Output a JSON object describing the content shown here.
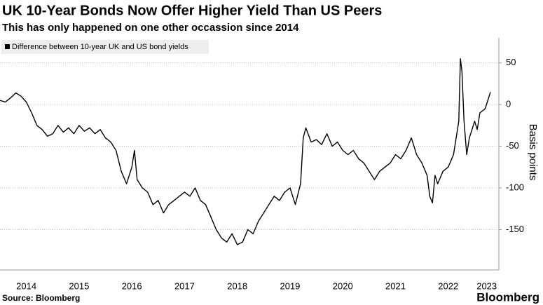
{
  "chart_data": {
    "type": "line",
    "title": "UK 10-Year Bonds Now Offer Higher Yield Than US Peers",
    "subtitle": "This has only happened on one other occassion since 2014",
    "y_label": "Basis points",
    "source": "Source: Bloomberg",
    "brand": "Bloomberg",
    "x": [
      2014.0,
      2014.1,
      2014.2,
      2014.3,
      2014.4,
      2014.5,
      2014.6,
      2014.7,
      2014.8,
      2014.9,
      2015.0,
      2015.1,
      2015.2,
      2015.3,
      2015.4,
      2015.5,
      2015.6,
      2015.7,
      2015.8,
      2015.9,
      2016.0,
      2016.1,
      2016.2,
      2016.3,
      2016.4,
      2016.5,
      2016.55,
      2016.6,
      2016.7,
      2016.8,
      2016.9,
      2017.0,
      2017.1,
      2017.2,
      2017.3,
      2017.4,
      2017.5,
      2017.6,
      2017.7,
      2017.8,
      2017.9,
      2018.0,
      2018.1,
      2018.2,
      2018.3,
      2018.4,
      2018.5,
      2018.6,
      2018.7,
      2018.8,
      2018.9,
      2019.0,
      2019.1,
      2019.2,
      2019.3,
      2019.4,
      2019.5,
      2019.6,
      2019.7,
      2019.75,
      2019.8,
      2019.9,
      2020.0,
      2020.1,
      2020.2,
      2020.3,
      2020.4,
      2020.5,
      2020.6,
      2020.7,
      2020.8,
      2020.9,
      2021.0,
      2021.1,
      2021.2,
      2021.3,
      2021.4,
      2021.5,
      2021.6,
      2021.7,
      2021.8,
      2021.9,
      2022.0,
      2022.1,
      2022.15,
      2022.2,
      2022.25,
      2022.3,
      2022.4,
      2022.5,
      2022.6,
      2022.7,
      2022.73,
      2022.76,
      2022.8,
      2022.85,
      2022.9,
      2023.0,
      2023.05,
      2023.1,
      2023.2,
      2023.3
    ],
    "series": [
      {
        "name": "Difference between 10-year UK and US bond yields",
        "color": "#000000",
        "values": [
          5,
          3,
          8,
          14,
          10,
          3,
          -10,
          -25,
          -30,
          -38,
          -35,
          -25,
          -33,
          -28,
          -35,
          -25,
          -32,
          -28,
          -35,
          -30,
          -40,
          -45,
          -55,
          -80,
          -95,
          -75,
          -55,
          -90,
          -100,
          -105,
          -120,
          -115,
          -130,
          -120,
          -115,
          -110,
          -105,
          -110,
          -100,
          -115,
          -120,
          -135,
          -150,
          -160,
          -165,
          -155,
          -168,
          -165,
          -150,
          -155,
          -140,
          -130,
          -120,
          -110,
          -115,
          -105,
          -100,
          -120,
          -95,
          -40,
          -28,
          -45,
          -42,
          -48,
          -35,
          -50,
          -45,
          -55,
          -60,
          -55,
          -65,
          -70,
          -80,
          -90,
          -80,
          -75,
          -70,
          -60,
          -65,
          -55,
          -40,
          -60,
          -70,
          -85,
          -110,
          -118,
          -85,
          -95,
          -80,
          -75,
          -60,
          -20,
          55,
          40,
          -20,
          -60,
          -40,
          -20,
          -30,
          -10,
          -5,
          15
        ]
      }
    ],
    "xlim": [
      2014,
      2023.46
    ],
    "xticks": [
      {
        "value": 2014.5,
        "label": "2014"
      },
      {
        "value": 2015.5,
        "label": "2015"
      },
      {
        "value": 2016.5,
        "label": "2016"
      },
      {
        "value": 2017.5,
        "label": "2017"
      },
      {
        "value": 2018.5,
        "label": "2018"
      },
      {
        "value": 2019.5,
        "label": "2019"
      },
      {
        "value": 2020.5,
        "label": "2020"
      },
      {
        "value": 2021.5,
        "label": "2021"
      },
      {
        "value": 2022.5,
        "label": "2022"
      },
      {
        "value": 2023.23,
        "label": "2023"
      }
    ],
    "ylim": [
      -195,
      80
    ],
    "yticks": [
      -150,
      -100,
      -50,
      0,
      50
    ],
    "grid": true
  }
}
